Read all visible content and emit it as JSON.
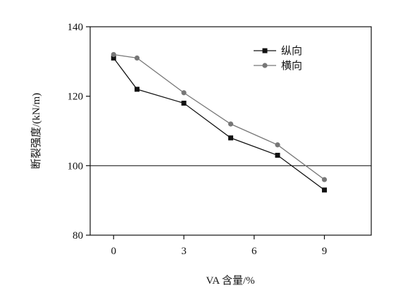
{
  "chart_data": {
    "type": "line",
    "title": "",
    "xlabel": "VA 含量/%",
    "ylabel": "断裂强度/(kN/m)",
    "xlim": [
      -1,
      11
    ],
    "ylim": [
      80,
      140
    ],
    "x_ticks": [
      0,
      3,
      6,
      9
    ],
    "x_tick_labels": [
      "0",
      "3",
      "6",
      "9"
    ],
    "y_ticks": [
      80,
      100,
      120,
      140
    ],
    "y_tick_labels": [
      "80",
      "100",
      "120",
      "140"
    ],
    "reference_line_y": 100,
    "grid": false,
    "legend_position": "top-right",
    "series": [
      {
        "name": "纵向",
        "marker": "square",
        "color": "#111111",
        "x": [
          0,
          1,
          3,
          5,
          7,
          9
        ],
        "y": [
          131,
          122,
          118,
          108,
          103,
          93
        ]
      },
      {
        "name": "横向",
        "marker": "circle",
        "color": "#777777",
        "x": [
          0,
          1,
          3,
          5,
          7,
          9
        ],
        "y": [
          132,
          131,
          121,
          112,
          106,
          96
        ]
      }
    ]
  }
}
